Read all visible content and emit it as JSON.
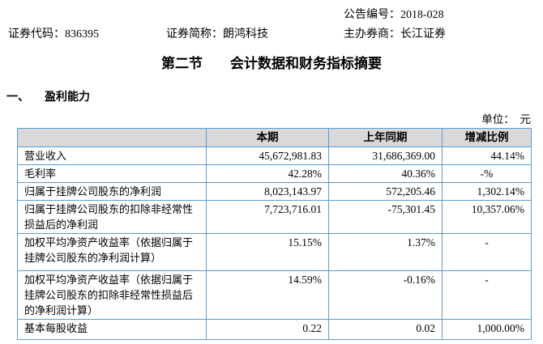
{
  "header": {
    "announcement_no": {
      "label": "公告编号：",
      "value": "2018-028"
    },
    "stock_code": {
      "label": "证券代码：",
      "value": "836395"
    },
    "stock_name": {
      "label": "证券简称：",
      "value": "朗鸿科技"
    },
    "sponsor": {
      "label": "主办券商：",
      "value": "长江证券"
    }
  },
  "title": "第二节　　会计数据和财务指标摘要",
  "section": {
    "index": "一、",
    "name": "盈利能力"
  },
  "unit_note": "单位：　元",
  "table": {
    "columns": [
      "",
      "本期",
      "上年同期",
      "增减比例"
    ],
    "rows": [
      {
        "label": "营业收入",
        "current": "45,672,981.83",
        "prior": "31,686,369.00",
        "change": "44.14%"
      },
      {
        "label": "毛利率",
        "current": "42.28%",
        "prior": "40.36%",
        "change": "-%"
      },
      {
        "label": "归属于挂牌公司股东的净利润",
        "current": "8,023,143.97",
        "prior": "572,205.46",
        "change": "1,302.14%"
      },
      {
        "label": "归属于挂牌公司股东的扣除非经常性损益后的净利润",
        "current": "7,723,716.01",
        "prior": "-75,301.45",
        "change": "10,357.06%"
      },
      {
        "label": "加权平均净资产收益率（依据归属于挂牌公司股东的净利润计算）",
        "current": "15.15%",
        "prior": "1.37%",
        "change": "-"
      },
      {
        "label": "加权平均净资产收益率（依据归属于挂牌公司股东的扣除非经常性损益后的净利润计算）",
        "current": "14.59%",
        "prior": "-0.16%",
        "change": "-"
      },
      {
        "label": "基本每股收益",
        "current": "0.22",
        "prior": "0.02",
        "change": "1,000.00%"
      }
    ]
  },
  "colors": {
    "table_border": "#5B9BD5",
    "header_row_bg": "#D9D9D9",
    "text": "#000000",
    "page_bg": "#FFFFFF"
  }
}
